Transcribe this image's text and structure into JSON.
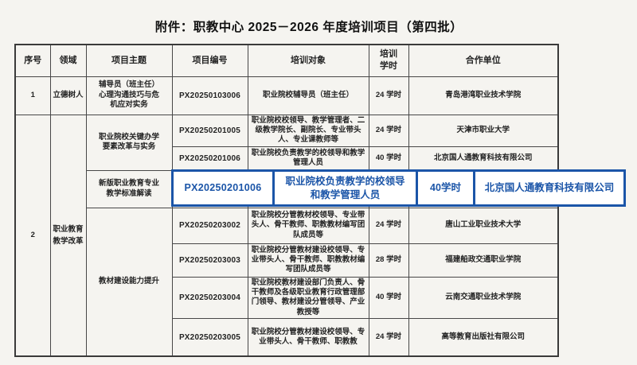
{
  "title": "附件：职教中心 2025－2026 年度培训项目（第四批）",
  "headers": {
    "serial": "序号",
    "field": "领域",
    "theme": "项目主题",
    "id": "项目编号",
    "audience": "培训对象",
    "hours": "培训\n学时",
    "partner": "合作单位"
  },
  "rows": {
    "r1": {
      "serial": "1",
      "field": "立德树人",
      "theme": "辅导员（班主任）\n心理沟通技巧与危\n机应对实务",
      "id": "PX20250103006",
      "audience": "职业院校辅导员（班主任）",
      "hours": "24 学时",
      "partner": "青岛港湾职业技术学院"
    },
    "r2": {
      "serial": "2",
      "field": "职业教育\n教学改革"
    },
    "r2a": {
      "theme": "职业院校关键办学\n要素改革与实务",
      "id": "PX20250201005",
      "audience": "职业院校校领导、教学管理者、二级教学院长、副院长、专业带头人、专业课教师等",
      "hours": "24 学时",
      "partner": "天津市职业大学"
    },
    "r2b": {
      "id": "PX20250201006",
      "audience": "职业院校负责教学的校领导和教学管理人员",
      "hours": "40 学时",
      "partner": "北京国人通教育科技有限公司"
    },
    "r2c": {
      "theme": "新版职业教育专业\n教学标准解读"
    },
    "r3a": {
      "theme": "教材建设能力提升",
      "id": "PX20250203002",
      "audience": "职业院校分管教材校领导、专业带头人、骨干教师、职教教材编写团队成员等",
      "hours": "24 学时",
      "partner": "唐山工业职业技术大学"
    },
    "r3b": {
      "id": "PX20250203003",
      "audience": "职业院校分管教材建设校领导、专业带头人、骨干教师、职教教材编写团队成员等",
      "hours": "28 学时",
      "partner": "福建船政交通职业学院"
    },
    "r3c": {
      "id": "PX20250203004",
      "audience": "职业院校教材建设部门负责人、骨干教师及各级职业教育行政管理部门领导、教材建设分管领导、产业教授等",
      "hours": "40 学时",
      "partner": "云南交通职业技术学院"
    },
    "r3d": {
      "id": "PX20250203005",
      "audience": "职业院校分管教材建设校领导、专业带头人、骨干教师、职教教",
      "hours": "24 学时",
      "partner": "高等教育出版社有限公司"
    }
  },
  "highlight": {
    "id": "PX20250201006",
    "audience": "职业院校负责教学的校领导\n和教学管理人员",
    "hours": "40学时",
    "partner": "北京国人通教育科技有限公司",
    "accent_color": "#1b55a8"
  }
}
